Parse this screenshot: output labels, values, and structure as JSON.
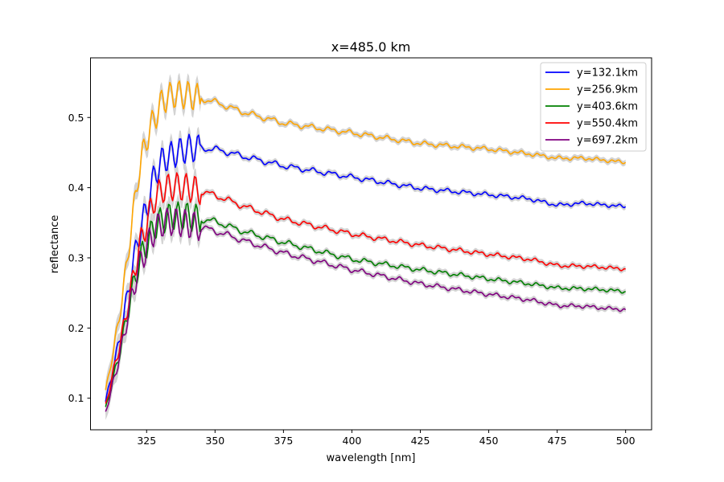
{
  "chart_data": {
    "type": "line",
    "title": "x=485.0 km",
    "xlabel": "wavelength [nm]",
    "ylabel": "reflectance",
    "xlim": [
      304.5,
      509.5
    ],
    "ylim": [
      0.055,
      0.585
    ],
    "xticks": [
      325,
      350,
      375,
      400,
      425,
      450,
      475,
      500
    ],
    "yticks": [
      0.1,
      0.2,
      0.3,
      0.4,
      0.5
    ],
    "grid": false,
    "legend_position": "top-right",
    "uncertainty_band_color": "#d3d3d3",
    "series": [
      {
        "name": "y=132.1km",
        "color": "#0000ff",
        "x": [
          310,
          313,
          316,
          319,
          322,
          325,
          328,
          331,
          335,
          340,
          345,
          350,
          355,
          360,
          375,
          400,
          425,
          450,
          465,
          475,
          485,
          490,
          500
        ],
        "y": [
          0.095,
          0.145,
          0.2,
          0.27,
          0.33,
          0.37,
          0.42,
          0.44,
          0.448,
          0.456,
          0.456,
          0.455,
          0.45,
          0.445,
          0.431,
          0.415,
          0.399,
          0.39,
          0.384,
          0.375,
          0.378,
          0.376,
          0.373
        ]
      },
      {
        "name": "y=256.9km",
        "color": "#ffa500",
        "x": [
          310,
          313,
          316,
          319,
          322,
          325,
          328,
          331,
          335,
          340,
          345,
          350,
          355,
          360,
          375,
          400,
          425,
          450,
          465,
          475,
          485,
          490,
          500
        ],
        "y": [
          0.11,
          0.17,
          0.24,
          0.33,
          0.42,
          0.47,
          0.5,
          0.525,
          0.533,
          0.532,
          0.527,
          0.522,
          0.515,
          0.508,
          0.492,
          0.478,
          0.463,
          0.455,
          0.448,
          0.442,
          0.442,
          0.44,
          0.436
        ]
      },
      {
        "name": "y=403.6km",
        "color": "#008000",
        "x": [
          310,
          313,
          316,
          319,
          322,
          325,
          328,
          331,
          335,
          340,
          345,
          350,
          355,
          360,
          375,
          400,
          425,
          450,
          465,
          475,
          485,
          490,
          500
        ],
        "y": [
          0.085,
          0.13,
          0.18,
          0.24,
          0.29,
          0.32,
          0.345,
          0.355,
          0.36,
          0.359,
          0.355,
          0.352,
          0.345,
          0.338,
          0.322,
          0.298,
          0.283,
          0.27,
          0.263,
          0.257,
          0.256,
          0.255,
          0.252
        ]
      },
      {
        "name": "y=550.4km",
        "color": "#ff0000",
        "x": [
          310,
          313,
          316,
          319,
          322,
          325,
          328,
          331,
          335,
          340,
          345,
          350,
          355,
          360,
          375,
          400,
          425,
          450,
          465,
          475,
          485,
          490,
          500
        ],
        "y": [
          0.09,
          0.14,
          0.19,
          0.25,
          0.31,
          0.35,
          0.385,
          0.398,
          0.402,
          0.4,
          0.395,
          0.389,
          0.382,
          0.374,
          0.355,
          0.334,
          0.318,
          0.305,
          0.298,
          0.289,
          0.288,
          0.287,
          0.284
        ]
      },
      {
        "name": "y=697.2km",
        "color": "#800080",
        "x": [
          310,
          313,
          316,
          319,
          322,
          325,
          328,
          331,
          335,
          340,
          345,
          350,
          355,
          360,
          375,
          400,
          425,
          450,
          465,
          475,
          485,
          490,
          500
        ],
        "y": [
          0.08,
          0.125,
          0.175,
          0.235,
          0.285,
          0.315,
          0.34,
          0.35,
          0.352,
          0.348,
          0.344,
          0.338,
          0.332,
          0.325,
          0.307,
          0.283,
          0.263,
          0.248,
          0.24,
          0.232,
          0.231,
          0.229,
          0.226
        ]
      }
    ]
  }
}
